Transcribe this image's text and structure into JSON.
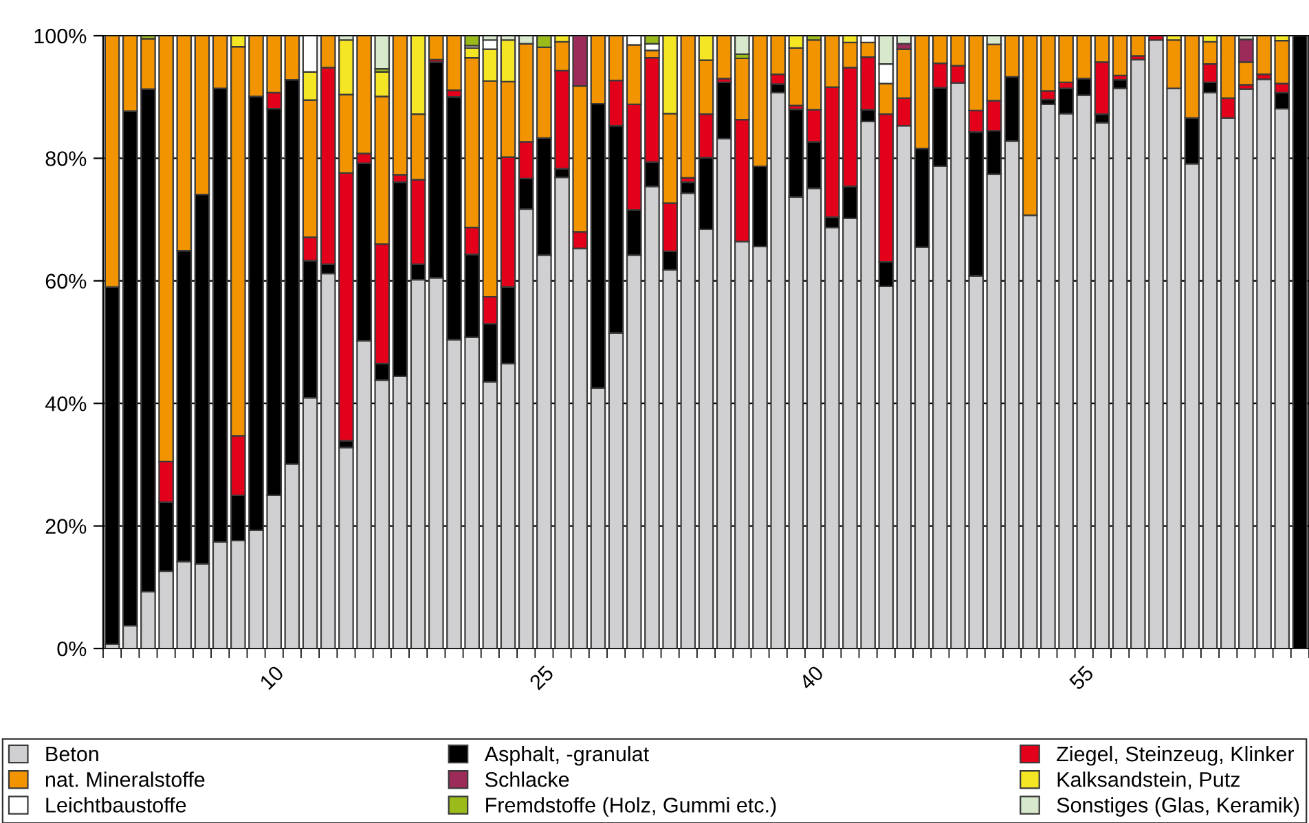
{
  "chart_data": {
    "type": "bar",
    "stacked": true,
    "categories": [
      null,
      null,
      null,
      null,
      null,
      null,
      null,
      null,
      null,
      "10",
      null,
      null,
      null,
      null,
      null,
      null,
      null,
      null,
      null,
      null,
      null,
      null,
      null,
      null,
      "25",
      null,
      null,
      null,
      null,
      null,
      null,
      null,
      null,
      null,
      null,
      null,
      null,
      null,
      null,
      "40",
      null,
      null,
      null,
      null,
      null,
      null,
      null,
      null,
      null,
      null,
      null,
      null,
      null,
      null,
      "55",
      null,
      null,
      null,
      null,
      null,
      null,
      null,
      null,
      null,
      null,
      null,
      null
    ],
    "series": [
      {
        "name": "Beton",
        "color": "#d0d0d2",
        "values": [
          0.7,
          3.7,
          9.3,
          12.6,
          14.2,
          13.8,
          17.4,
          17.6,
          19.3,
          25,
          30.1,
          40.9,
          61.2,
          32.8,
          50.2,
          43.8,
          44.4,
          60.2,
          60.5,
          50.4,
          50.8,
          43.5,
          46.5,
          71.7,
          64.2,
          76.9,
          65.3,
          42.5,
          51.5,
          64.2,
          75.4,
          61.8,
          74.3,
          68.4,
          83.2,
          66.4,
          65.6,
          90.7,
          73.7,
          75.1,
          68.7,
          70.2,
          86,
          59.1,
          85.3,
          65.5,
          78.7,
          92.3,
          60.8,
          77.4,
          82.8,
          70.7,
          88.8,
          87.3,
          90.3,
          85.8,
          91.4,
          96.1,
          99.3,
          91.4,
          79.1,
          90.7,
          86.6,
          91.3,
          92.9,
          88.1,
          0
        ]
      },
      {
        "name": "Asphalt, -granulat",
        "color": "#000000",
        "values": [
          58.3,
          84,
          82,
          11.3,
          50.7,
          60.3,
          74,
          7.4,
          70.8,
          63.1,
          62.7,
          22.4,
          1.5,
          1.1,
          29,
          2.7,
          31.7,
          2.5,
          35.2,
          39.6,
          13.5,
          9.5,
          12.5,
          5,
          19.1,
          1.4,
          0,
          46.4,
          33.8,
          7.4,
          4,
          3,
          1.8,
          11.7,
          9.2,
          0,
          13.1,
          1.4,
          14.3,
          7.6,
          1.7,
          5.2,
          1.9,
          4,
          0,
          16.1,
          12.8,
          0,
          23.5,
          7.1,
          10.5,
          0,
          0.8,
          4.1,
          2.7,
          1.4,
          1.4,
          0,
          0,
          0,
          7.5,
          1.7,
          0,
          0,
          0,
          2.6,
          100
        ]
      },
      {
        "name": "Ziegel, Steinzeug, Klinker",
        "color": "#e2001a",
        "values": [
          0,
          0,
          0,
          6.6,
          0,
          0,
          0,
          9.7,
          0,
          2.6,
          0,
          3.8,
          32.1,
          43.7,
          1.6,
          19.5,
          1.2,
          13.8,
          0.4,
          1.1,
          4.4,
          4.4,
          21.2,
          6,
          0,
          16,
          2.7,
          0,
          7.4,
          17.2,
          17,
          7.9,
          0.7,
          7.1,
          0.6,
          19.9,
          0,
          1.6,
          0.6,
          5.2,
          21.2,
          19.4,
          8.6,
          24.1,
          4.5,
          0,
          4,
          2.8,
          3.5,
          4.9,
          0,
          0,
          1.4,
          1,
          0,
          8.5,
          0.7,
          0.6,
          0.7,
          0,
          0,
          3,
          3.2,
          0.7,
          0.8,
          1.5,
          0
        ]
      },
      {
        "name": "nat. Mineralstoffe",
        "color": "#f29400",
        "values": [
          41,
          12.3,
          8.2,
          69.5,
          35.1,
          25.9,
          8.6,
          63.5,
          9.9,
          9.3,
          7.2,
          22.4,
          5.2,
          12.8,
          19.2,
          24.1,
          22.7,
          10.7,
          3.9,
          8.9,
          27.7,
          35.2,
          12.3,
          16,
          14.8,
          4.7,
          23.8,
          11.1,
          7.3,
          9.7,
          1.2,
          14.6,
          23.2,
          8.8,
          7,
          10,
          21.3,
          6.3,
          9.4,
          11.4,
          8.4,
          4.1,
          2.4,
          5,
          8,
          18.4,
          4.5,
          4.9,
          12.2,
          9.2,
          6.7,
          29.3,
          9,
          7.6,
          7,
          4.3,
          6.5,
          3.3,
          0,
          7.9,
          13.4,
          3.6,
          10.2,
          3.7,
          6.3,
          7,
          0
        ]
      },
      {
        "name": "Kalksandstein, Putz",
        "color": "#f5e625",
        "values": [
          0,
          0,
          0,
          0,
          0,
          0,
          0,
          1.8,
          0,
          0,
          0,
          4.6,
          0,
          8.9,
          0,
          4,
          0,
          12.8,
          0,
          0,
          1.6,
          5.2,
          6.8,
          0,
          0,
          1,
          0,
          0,
          0,
          0,
          0,
          12.7,
          0,
          4,
          0,
          0,
          0,
          0,
          2,
          0,
          0,
          1.1,
          0,
          0,
          0,
          0,
          0,
          0,
          0,
          0,
          0,
          0,
          0,
          0,
          0,
          0,
          0,
          0,
          0,
          0.7,
          0,
          1,
          0,
          0,
          0,
          0.8,
          0
        ]
      },
      {
        "name": "Leichtbaustoffe",
        "color": "#ffffff",
        "values": [
          0,
          0,
          0,
          0,
          0,
          0,
          0,
          0,
          0,
          0,
          0,
          5.9,
          0,
          0,
          0,
          0,
          0,
          0,
          0,
          0,
          0.4,
          1.5,
          0,
          0,
          0,
          0,
          0,
          0,
          0,
          1.5,
          1.1,
          0,
          0,
          0,
          0,
          0,
          0,
          0,
          0,
          0,
          0,
          0,
          1.1,
          3.2,
          0,
          0,
          0,
          0,
          0,
          0,
          0,
          0,
          0,
          0,
          0,
          0,
          0,
          0,
          0,
          0,
          0,
          0,
          0,
          0,
          0,
          0,
          0
        ]
      },
      {
        "name": "Schlacke",
        "color": "#9c2b5a",
        "values": [
          0,
          0,
          0,
          0,
          0,
          0,
          0,
          0,
          0,
          0,
          0,
          0,
          0,
          0,
          0,
          0,
          0,
          0,
          0,
          0,
          0,
          0,
          0,
          0,
          0,
          0,
          8.2,
          0,
          0,
          0,
          0,
          0,
          0,
          0,
          0,
          0,
          0,
          0,
          0,
          0,
          0,
          0,
          0,
          0,
          0.9,
          0,
          0,
          0,
          0,
          0,
          0,
          0,
          0,
          0,
          0,
          0,
          0,
          0,
          0,
          0,
          0,
          0,
          0,
          3.7,
          0,
          0,
          0
        ]
      },
      {
        "name": "Fremdstoffe (Holz, Gummi etc.)",
        "color": "#9bbb1a",
        "values": [
          0,
          0,
          0.5,
          0,
          0,
          0,
          0,
          0,
          0,
          0,
          0,
          0,
          0,
          0,
          0,
          0.5,
          0,
          0,
          0,
          0,
          1.6,
          0,
          0,
          0,
          1.9,
          0,
          0,
          0,
          0,
          0,
          1.3,
          0,
          0,
          0,
          0,
          0.7,
          0,
          0,
          0,
          0.7,
          0,
          0,
          0,
          0,
          null,
          0,
          0,
          0,
          0,
          0,
          0,
          0,
          0,
          0,
          0,
          0,
          0,
          0,
          0,
          0,
          0,
          0,
          0,
          0,
          0,
          0,
          0
        ]
      },
      {
        "name": "Sonstiges (Glas, Keramik)",
        "color": "#d8e8cc",
        "values": [
          0,
          0,
          0,
          0,
          0,
          0,
          0,
          0,
          0,
          0,
          0,
          0,
          0,
          0.7,
          0,
          5.4,
          0,
          0,
          0,
          0,
          0,
          0.7,
          0.7,
          1.3,
          0,
          0,
          0,
          0,
          0,
          0,
          0,
          0,
          0,
          0,
          0,
          3,
          0,
          0,
          0,
          0,
          0,
          0,
          0,
          4.6,
          1.3,
          0,
          0,
          0,
          0,
          1.4,
          0,
          0,
          0,
          0,
          0,
          0,
          0,
          0,
          0,
          0,
          0,
          0,
          0,
          0.6,
          0,
          0,
          0
        ]
      }
    ],
    "ylim": [
      0,
      100
    ],
    "yticks": [
      {
        "value": 0,
        "label": "0%"
      },
      {
        "value": 20,
        "label": "20%"
      },
      {
        "value": 40,
        "label": "40%"
      },
      {
        "value": 60,
        "label": "60%"
      },
      {
        "value": 80,
        "label": "80%"
      },
      {
        "value": 100,
        "label": "100%"
      }
    ],
    "grid": "y",
    "legend": "bottom"
  }
}
